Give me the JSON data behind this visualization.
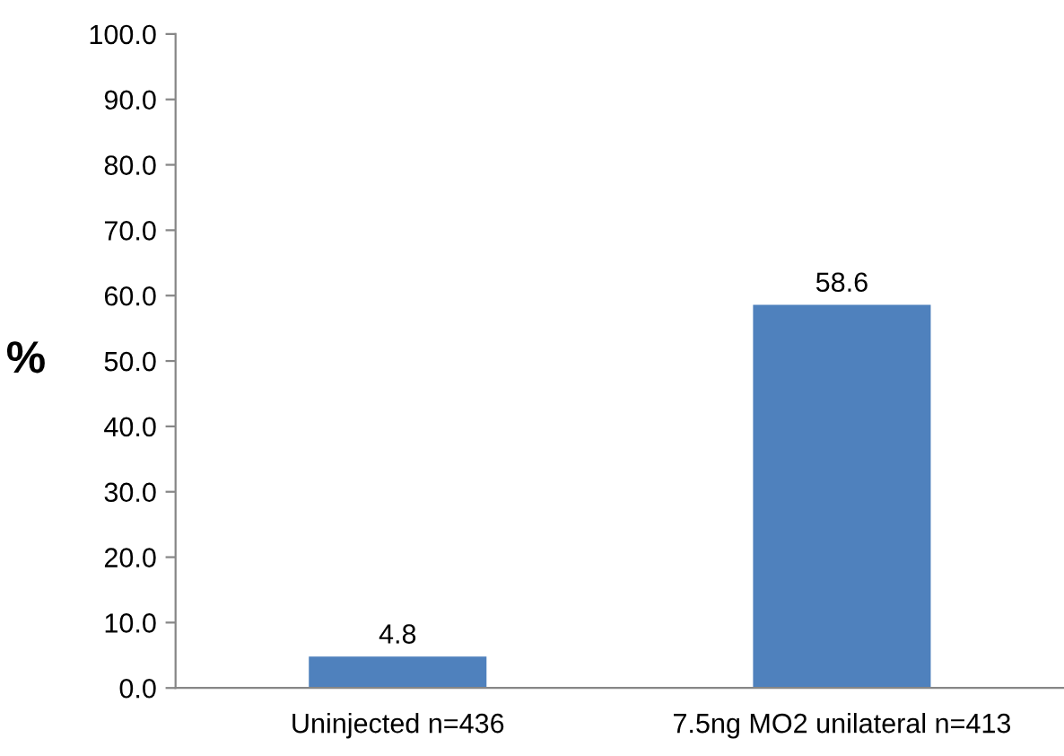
{
  "chart_data": {
    "type": "bar",
    "ylabel": "%",
    "categories": [
      "Uninjected n=436",
      "7.5ng MO2 unilateral n=413"
    ],
    "values": [
      4.8,
      58.6
    ],
    "color": "#4f81bd",
    "ylim": [
      0,
      100
    ],
    "yticks": [
      {
        "value": 0,
        "label": "0.0"
      },
      {
        "value": 10,
        "label": "10.0"
      },
      {
        "value": 20,
        "label": "20.0"
      },
      {
        "value": 30,
        "label": "30.0"
      },
      {
        "value": 40,
        "label": "40.0"
      },
      {
        "value": 50,
        "label": "50.0"
      },
      {
        "value": 60,
        "label": "60.0"
      },
      {
        "value": 70,
        "label": "70.0"
      },
      {
        "value": 80,
        "label": "80.0"
      },
      {
        "value": 90,
        "label": "90.0"
      },
      {
        "value": 100,
        "label": "100.0"
      }
    ],
    "data_labels": true,
    "grid": false,
    "legend": false
  }
}
